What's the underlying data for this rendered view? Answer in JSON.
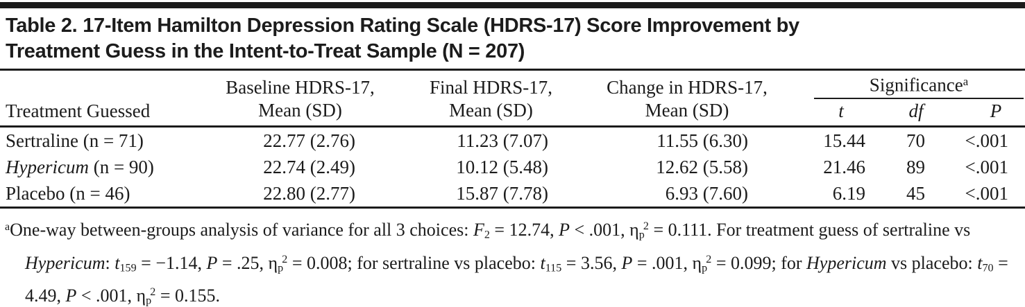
{
  "colors": {
    "background": "#ffffff",
    "text": "#1b1b1b",
    "rule": "#1b1b1b"
  },
  "title": {
    "line1": "Table 2. 17-Item Hamilton Depression Rating Scale (HDRS-17) Score Improvement by",
    "line2": "Treatment Guess in the Intent-to-Treat Sample (N = 207)"
  },
  "table": {
    "header": {
      "treatment": "Treatment Guessed",
      "baseline_line1": "Baseline HDRS-17,",
      "baseline_line2": "Mean (SD)",
      "final_line1": "Final HDRS-17,",
      "final_line2": "Mean (SD)",
      "change_line1": "Change in HDRS-17,",
      "change_line2": "Mean (SD)",
      "significance": "Significance",
      "significance_marker": "a",
      "t": "t",
      "df": "df",
      "p": "P"
    },
    "rows": [
      {
        "name": "Sertraline",
        "n": " (n = 71)",
        "baseline": "22.77 (2.76)",
        "final": "11.23 (7.07)",
        "change": "11.55 (6.30)",
        "t": "15.44",
        "df": "70",
        "p": "<.001"
      },
      {
        "name": "Hypericum",
        "n": " (n = 90)",
        "baseline": "22.74 (2.49)",
        "final": "10.12 (5.48)",
        "change": "12.62 (5.58)",
        "t": "21.46",
        "df": "89",
        "p": "<.001"
      },
      {
        "name": "Placebo",
        "n": " (n = 46)",
        "baseline": "22.80 (2.77)",
        "final": "15.87 (7.78)",
        "change": "6.93 (7.60)",
        "t": "6.19",
        "df": "45",
        "p": "<.001"
      }
    ]
  },
  "footnote": {
    "segments": [
      "a",
      "One-way between-groups analysis of variance for all 3 choices: ",
      "F",
      "2",
      " = 12.74, ",
      "P",
      " < .001, η",
      "p",
      "2",
      " = 0.111. For treatment guess of sertraline vs ",
      "Hypericum",
      ": ",
      "t",
      "159",
      " = −1.14, ",
      "P",
      " = .25, η",
      "p",
      "2",
      " = 0.008; for sertraline vs placebo: ",
      "t",
      "115",
      " = 3.56, ",
      "P",
      " = .001, η",
      "p",
      "2",
      " = 0.099; for ",
      "Hypericum",
      " vs placebo: ",
      "t",
      "70",
      " = 4.49, ",
      "P",
      " < .001, η",
      "p",
      "2",
      " = 0.155."
    ]
  }
}
